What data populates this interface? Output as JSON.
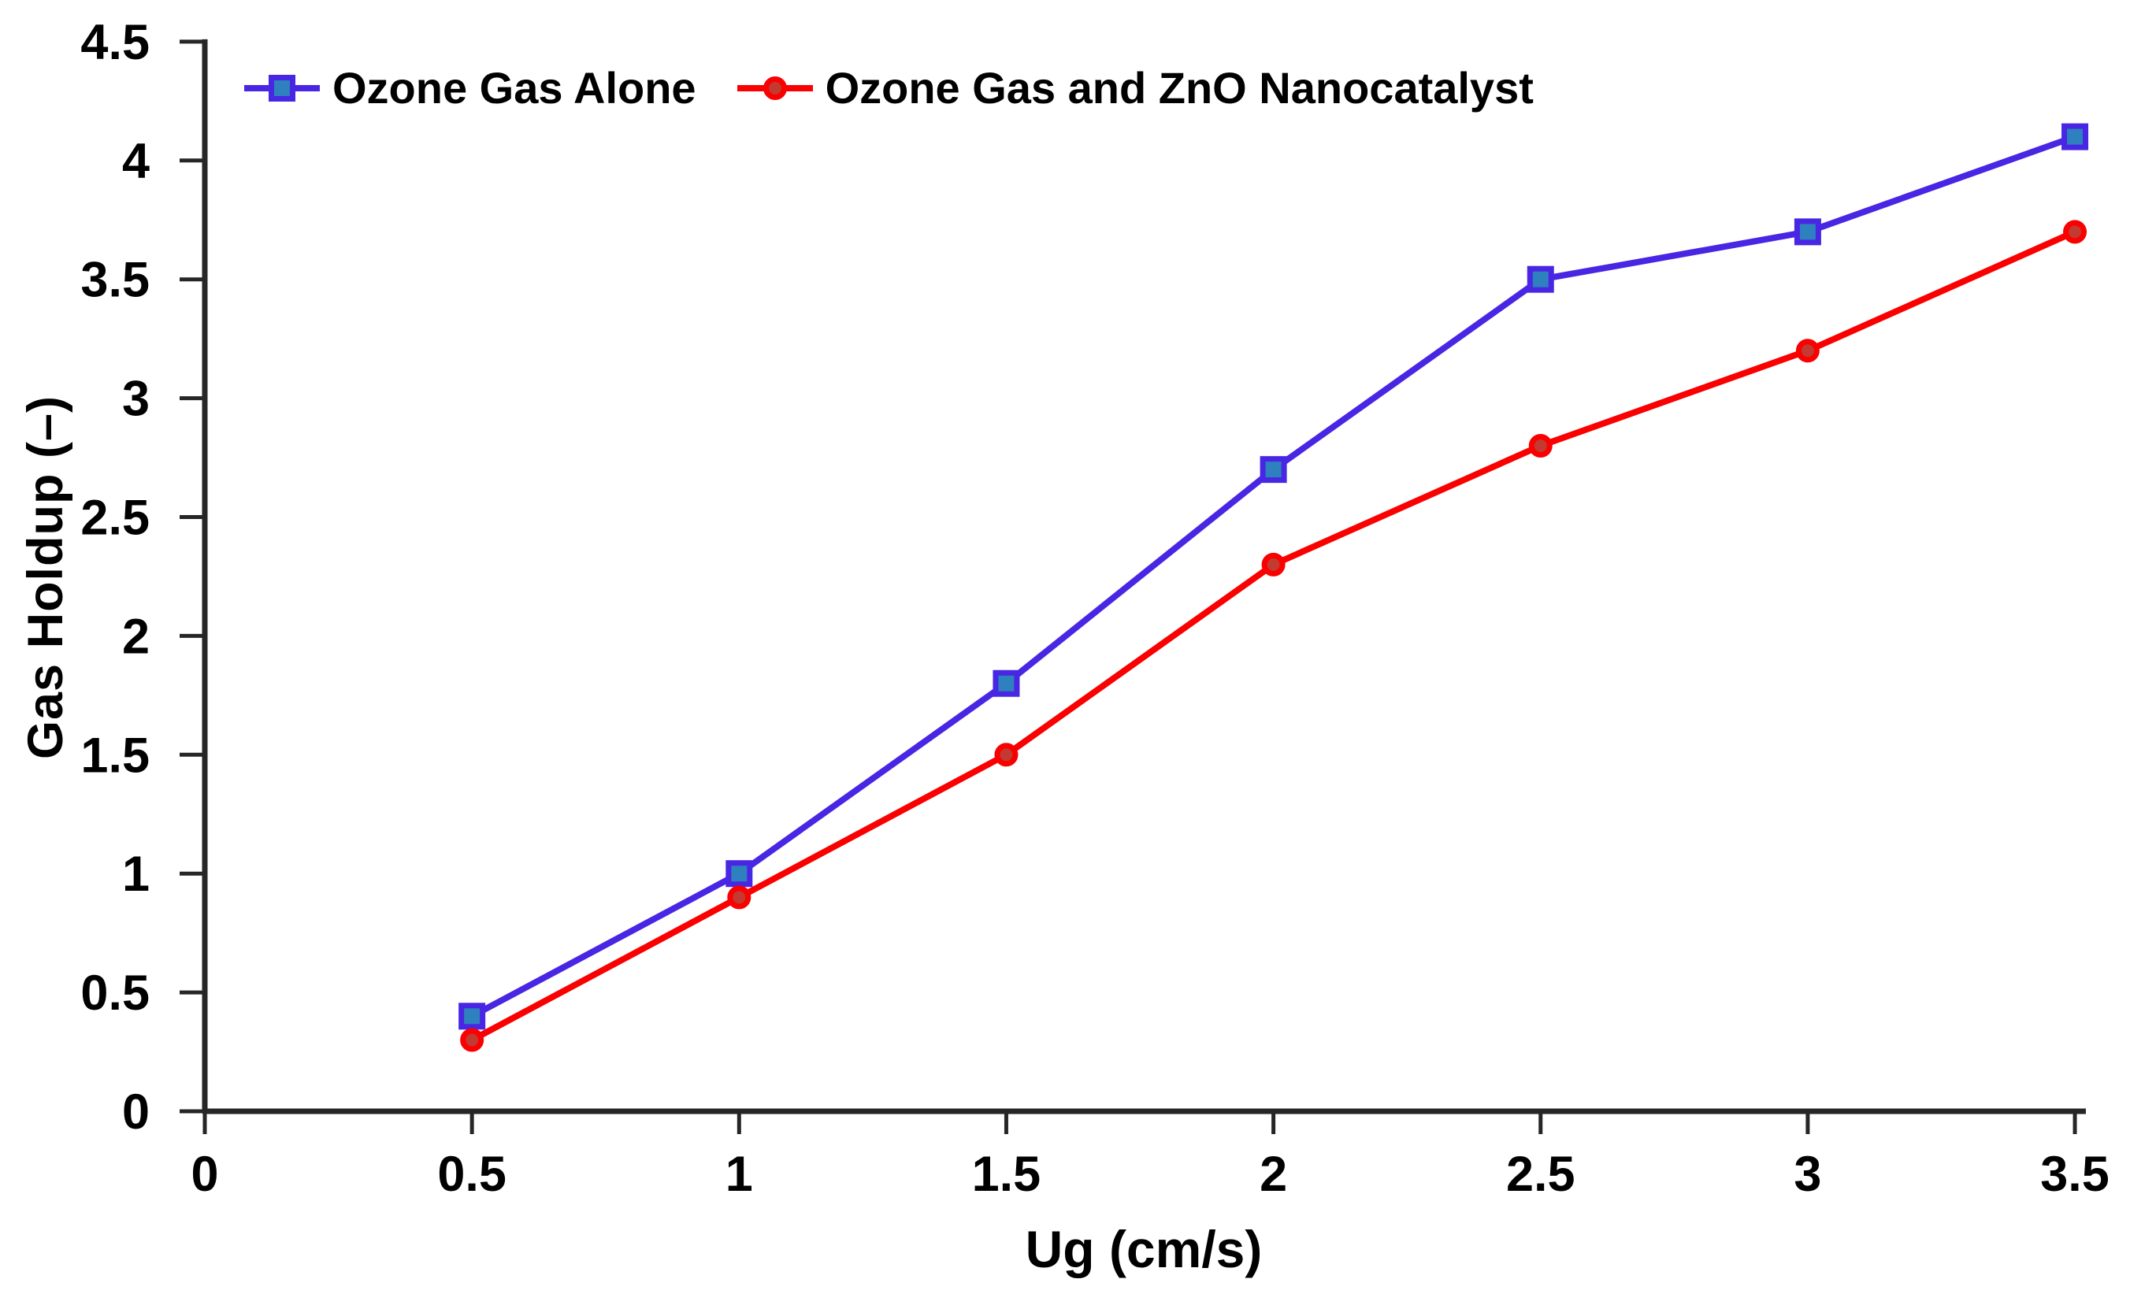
{
  "chart_data": {
    "type": "line",
    "title": "",
    "xlabel": "Ug (cm/s)",
    "ylabel": "Gas Holdup (–)",
    "x": [
      0.5,
      1,
      1.5,
      2,
      2.5,
      3,
      3.5
    ],
    "series": [
      {
        "name": "Ozone Gas Alone",
        "marker": "square",
        "line_color": "#4826E3",
        "marker_fill": "#2E80BE",
        "values": [
          0.4,
          1.0,
          1.8,
          2.7,
          3.5,
          3.7,
          4.1
        ]
      },
      {
        "name": "Ozone Gas and ZnO Nanocatalyst",
        "marker": "circle",
        "line_color": "#FA0000",
        "marker_fill": "#C33A31",
        "values": [
          0.3,
          0.9,
          1.5,
          2.3,
          2.8,
          3.2,
          3.7
        ]
      }
    ],
    "x_ticks": {
      "values": [
        0,
        0.5,
        1,
        1.5,
        2,
        2.5,
        3,
        3.5
      ],
      "labels": [
        "0",
        "0.5",
        "1",
        "1.5",
        "2",
        "2.5",
        "3",
        "3.5"
      ]
    },
    "y_ticks": {
      "values": [
        0,
        0.5,
        1,
        1.5,
        2,
        2.5,
        3,
        3.5,
        4,
        4.5
      ],
      "labels": [
        "0",
        "0.5",
        "1",
        "1.5",
        "2",
        "2.5",
        "3",
        "3.5",
        "4",
        "4.5"
      ]
    },
    "xlim": [
      0,
      3.5
    ],
    "ylim": [
      0,
      4.5
    ],
    "grid": false,
    "legend_position": "top-left-horizontal",
    "axis_color": "#262626",
    "text_color": "#000000"
  }
}
